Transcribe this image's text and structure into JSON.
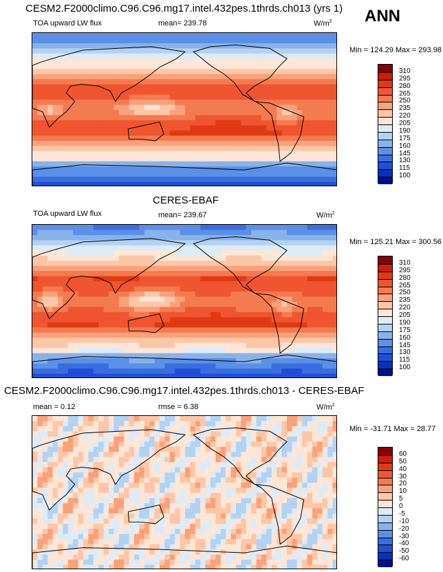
{
  "panels": [
    {
      "title": "CESM2.F2000climo.C96.C96.mg17.intel.432pes.1thrds.ch013 (yrs 1)",
      "left_label": "TOA upward LW flux",
      "center_label": "mean= 239.78",
      "units": "W/m",
      "units_sup": "2",
      "minmax": "Min = 124.29 Max = 293.98",
      "field": "full"
    },
    {
      "title": "CERES-EBAF",
      "left_label": "TOA upward LW flux",
      "center_label": "mean= 239.67",
      "units": "W/m",
      "units_sup": "2",
      "minmax": "Min = 125.21 Max = 300.56",
      "field": "obs"
    },
    {
      "title": "CESM2.F2000climo.C96.C96.mg17.intel.432pes.1thrds.ch013 - CERES-EBAF",
      "left_label": "mean =   0.12",
      "center_label": "rmse =   6.38",
      "units": "W/m",
      "units_sup": "2",
      "minmax": "Min = -31.71 Max =  28.77",
      "field": "diff"
    }
  ],
  "season": "ANN",
  "colorbars": {
    "flux": {
      "labels": [
        "310",
        "295",
        "280",
        "265",
        "250",
        "235",
        "220",
        "205",
        "190",
        "175",
        "160",
        "145",
        "130",
        "115",
        "100"
      ],
      "colors": [
        "#8b0000",
        "#cc2000",
        "#e03a14",
        "#ee5530",
        "#f47a50",
        "#f9a17a",
        "#fcc6a8",
        "#fde6d6",
        "#dcebf7",
        "#b4d2f0",
        "#88b2ea",
        "#5c8fe6",
        "#3a6ee0",
        "#1e4fd6",
        "#0a2fb8",
        "#00108a"
      ]
    },
    "diff": {
      "labels": [
        "60",
        "50",
        "40",
        "30",
        "20",
        "10",
        "5",
        "0",
        "-5",
        "-10",
        "-20",
        "-30",
        "-40",
        "-50",
        "-60"
      ],
      "colors": [
        "#8b0000",
        "#cc2000",
        "#e03a14",
        "#ee5530",
        "#f47a50",
        "#f9a17a",
        "#fcc6a8",
        "#fde6d6",
        "#dcebf7",
        "#b4d2f0",
        "#88b2ea",
        "#5c8fe6",
        "#3a6ee0",
        "#1e4fd6",
        "#0a2fb8",
        "#00108a"
      ]
    }
  }
}
